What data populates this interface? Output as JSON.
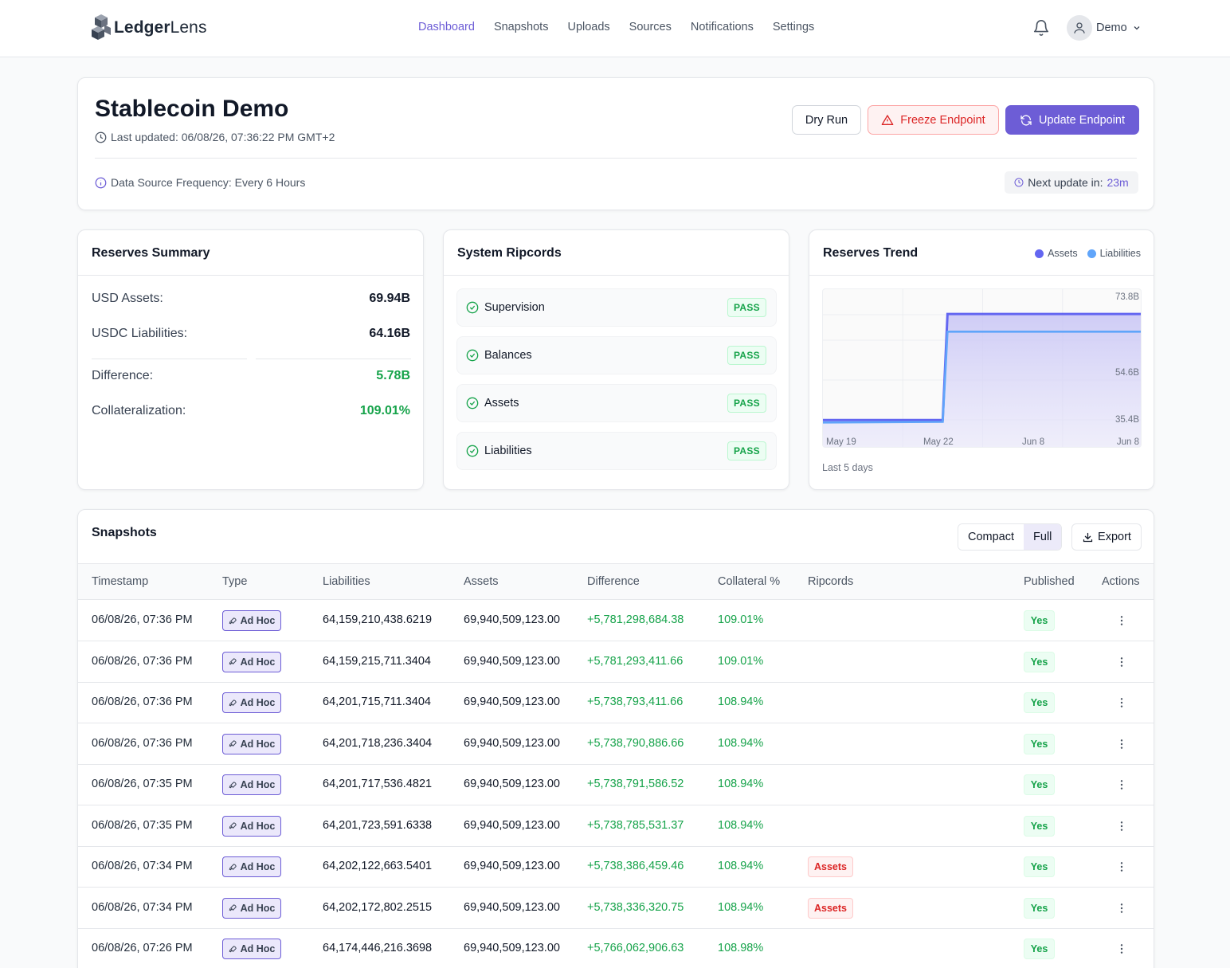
{
  "app": {
    "logo_bold": "Ledger",
    "logo_light": "Lens"
  },
  "nav": {
    "links": [
      "Dashboard",
      "Snapshots",
      "Uploads",
      "Sources",
      "Notifications",
      "Settings"
    ],
    "active": "Dashboard",
    "user_name": "Demo"
  },
  "header": {
    "title": "Stablecoin Demo",
    "last_updated": "Last updated: 06/08/26, 07:36:22 PM GMT+2",
    "dry_run": "Dry Run",
    "freeze": "Freeze Endpoint",
    "update": "Update Endpoint",
    "frequency": "Data Source Frequency: Every 6 Hours",
    "next_update_label": "Next update in:",
    "next_update_value": "23m"
  },
  "reserves_summary": {
    "title": "Reserves Summary",
    "usd_assets_label": "USD Assets:",
    "usd_assets_value": "69.94B",
    "usdc_liabilities_label": "USDC Liabilities:",
    "usdc_liabilities_value": "64.16B",
    "difference_label": "Difference:",
    "difference_value": "5.78B",
    "collateralization_label": "Collateralization:",
    "collateralization_value": "109.01%"
  },
  "ripcords": {
    "title": "System Ripcords",
    "items": [
      {
        "label": "Supervision",
        "status": "PASS"
      },
      {
        "label": "Balances",
        "status": "PASS"
      },
      {
        "label": "Assets",
        "status": "PASS"
      },
      {
        "label": "Liabilities",
        "status": "PASS"
      }
    ]
  },
  "trend": {
    "title": "Reserves Trend",
    "note": "Last 5 days",
    "colors": {
      "assets": "#6366f1",
      "liabilities": "#60a5fa"
    }
  },
  "chart_data": {
    "type": "area",
    "title": "Reserves Trend",
    "x": [
      "May 19",
      "May 22",
      "Jun 8",
      "Jun 8"
    ],
    "x_ticks": [
      "May 19",
      "May 22",
      "Jun 8",
      "Jun 8"
    ],
    "y_ticks": [
      "73.8B",
      "54.6B",
      "35.4B"
    ],
    "ylim": [
      30,
      78
    ],
    "grid": true,
    "legend": "top-right",
    "series": [
      {
        "name": "Assets",
        "points": [
          [
            0.0,
            35.4
          ],
          [
            0.375,
            35.4
          ],
          [
            0.39,
            69.94
          ],
          [
            1.0,
            69.94
          ]
        ]
      },
      {
        "name": "Liabilities",
        "points": [
          [
            0.0,
            34.6
          ],
          [
            0.375,
            34.8
          ],
          [
            0.39,
            64.16
          ],
          [
            1.0,
            64.16
          ]
        ]
      }
    ]
  },
  "snapshots": {
    "title": "Snapshots",
    "view_compact": "Compact",
    "view_full": "Full",
    "export": "Export",
    "columns": [
      "Timestamp",
      "Type",
      "Liabilities",
      "Assets",
      "Difference",
      "Collateral %",
      "Ripcords",
      "Published",
      "Actions"
    ],
    "rows": [
      {
        "ts": "06/08/26, 07:36 PM",
        "type": "Ad Hoc",
        "liab": "64,159,210,438.6219",
        "assets": "69,940,509,123.00",
        "diff": "+5,781,298,684.38",
        "coll": "109.01%",
        "rip": "",
        "pub": "Yes"
      },
      {
        "ts": "06/08/26, 07:36 PM",
        "type": "Ad Hoc",
        "liab": "64,159,215,711.3404",
        "assets": "69,940,509,123.00",
        "diff": "+5,781,293,411.66",
        "coll": "109.01%",
        "rip": "",
        "pub": "Yes"
      },
      {
        "ts": "06/08/26, 07:36 PM",
        "type": "Ad Hoc",
        "liab": "64,201,715,711.3404",
        "assets": "69,940,509,123.00",
        "diff": "+5,738,793,411.66",
        "coll": "108.94%",
        "rip": "",
        "pub": "Yes"
      },
      {
        "ts": "06/08/26, 07:36 PM",
        "type": "Ad Hoc",
        "liab": "64,201,718,236.3404",
        "assets": "69,940,509,123.00",
        "diff": "+5,738,790,886.66",
        "coll": "108.94%",
        "rip": "",
        "pub": "Yes"
      },
      {
        "ts": "06/08/26, 07:35 PM",
        "type": "Ad Hoc",
        "liab": "64,201,717,536.4821",
        "assets": "69,940,509,123.00",
        "diff": "+5,738,791,586.52",
        "coll": "108.94%",
        "rip": "",
        "pub": "Yes"
      },
      {
        "ts": "06/08/26, 07:35 PM",
        "type": "Ad Hoc",
        "liab": "64,201,723,591.6338",
        "assets": "69,940,509,123.00",
        "diff": "+5,738,785,531.37",
        "coll": "108.94%",
        "rip": "",
        "pub": "Yes"
      },
      {
        "ts": "06/08/26, 07:34 PM",
        "type": "Ad Hoc",
        "liab": "64,202,122,663.5401",
        "assets": "69,940,509,123.00",
        "diff": "+5,738,386,459.46",
        "coll": "108.94%",
        "rip": "Assets",
        "pub": "Yes"
      },
      {
        "ts": "06/08/26, 07:34 PM",
        "type": "Ad Hoc",
        "liab": "64,202,172,802.2515",
        "assets": "69,940,509,123.00",
        "diff": "+5,738,336,320.75",
        "coll": "108.94%",
        "rip": "Assets",
        "pub": "Yes"
      },
      {
        "ts": "06/08/26, 07:26 PM",
        "type": "Ad Hoc",
        "liab": "64,174,446,216.3698",
        "assets": "69,940,509,123.00",
        "diff": "+5,766,062,906.63",
        "coll": "108.98%",
        "rip": "",
        "pub": "Yes"
      }
    ]
  }
}
